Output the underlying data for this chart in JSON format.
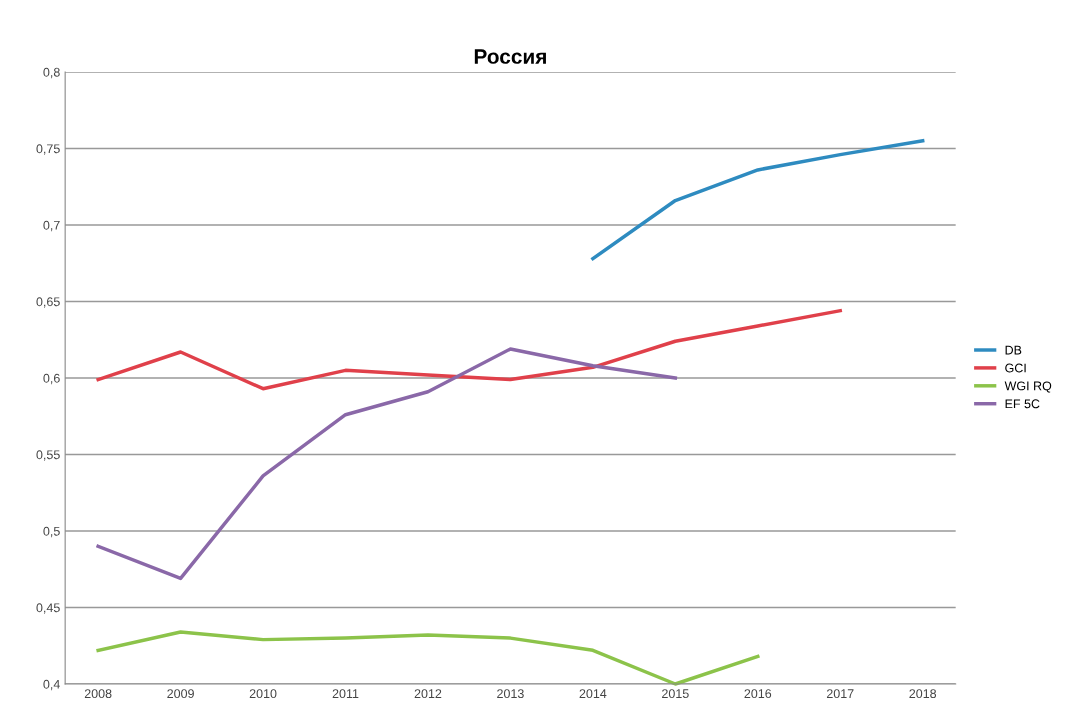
{
  "chart_data": {
    "type": "line",
    "title": "Россия",
    "categories": [
      "2008",
      "2009",
      "2010",
      "2011",
      "2012",
      "2013",
      "2014",
      "2015",
      "2016",
      "2017",
      "2018"
    ],
    "series": [
      {
        "name": "DB",
        "color": "#2e8bc0",
        "values": [
          null,
          null,
          null,
          null,
          null,
          null,
          0.678,
          0.716,
          0.736,
          0.746,
          0.755
        ]
      },
      {
        "name": "GCI",
        "color": "#e0404a",
        "values": [
          0.599,
          0.617,
          0.593,
          0.605,
          0.602,
          0.599,
          0.607,
          0.624,
          0.634,
          0.644,
          null
        ]
      },
      {
        "name": "WGI RQ",
        "color": "#8cc34a",
        "values": [
          0.422,
          0.434,
          0.429,
          0.43,
          0.432,
          0.43,
          0.422,
          0.4,
          0.418,
          null,
          null
        ]
      },
      {
        "name": "EF 5C",
        "color": "#8a68a8",
        "values": [
          0.49,
          0.469,
          0.536,
          0.576,
          0.591,
          0.619,
          0.608,
          0.6,
          null,
          null,
          null
        ]
      }
    ],
    "ylim": [
      0.4,
      0.8
    ],
    "yticks": [
      {
        "value": 0.4,
        "label": "0,4"
      },
      {
        "value": 0.45,
        "label": "0,45"
      },
      {
        "value": 0.5,
        "label": "0,5"
      },
      {
        "value": 0.55,
        "label": "0,55"
      },
      {
        "value": 0.6,
        "label": "0,6"
      },
      {
        "value": 0.65,
        "label": "0,65"
      },
      {
        "value": 0.7,
        "label": "0,7"
      },
      {
        "value": 0.75,
        "label": "0,75"
      },
      {
        "value": 0.8,
        "label": "0,8"
      }
    ],
    "grid": "y",
    "legend": "right",
    "marker": "none",
    "line_style": "solid"
  }
}
